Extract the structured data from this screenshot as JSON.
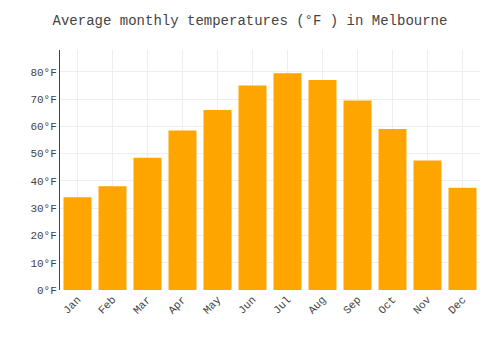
{
  "chart_data": {
    "type": "bar",
    "title": "Average monthly temperatures (°F ) in Melbourne",
    "categories": [
      "Jan",
      "Feb",
      "Mar",
      "Apr",
      "May",
      "Jun",
      "Jul",
      "Aug",
      "Sep",
      "Oct",
      "Nov",
      "Dec"
    ],
    "values": [
      34,
      38,
      48.5,
      58.5,
      66,
      75,
      79.5,
      77,
      69.5,
      59,
      47.5,
      37.5
    ],
    "color": "#FFA500",
    "ylim": [
      0,
      88
    ],
    "yticks": [
      {
        "value": 0,
        "label": "0°F"
      },
      {
        "value": 10,
        "label": "10°F"
      },
      {
        "value": 20,
        "label": "20°F"
      },
      {
        "value": 30,
        "label": "30°F"
      },
      {
        "value": 40,
        "label": "40°F"
      },
      {
        "value": 50,
        "label": "50°F"
      },
      {
        "value": 60,
        "label": "60°F"
      },
      {
        "value": 70,
        "label": "70°F"
      },
      {
        "value": 80,
        "label": "80°F"
      }
    ],
    "grid": true
  }
}
